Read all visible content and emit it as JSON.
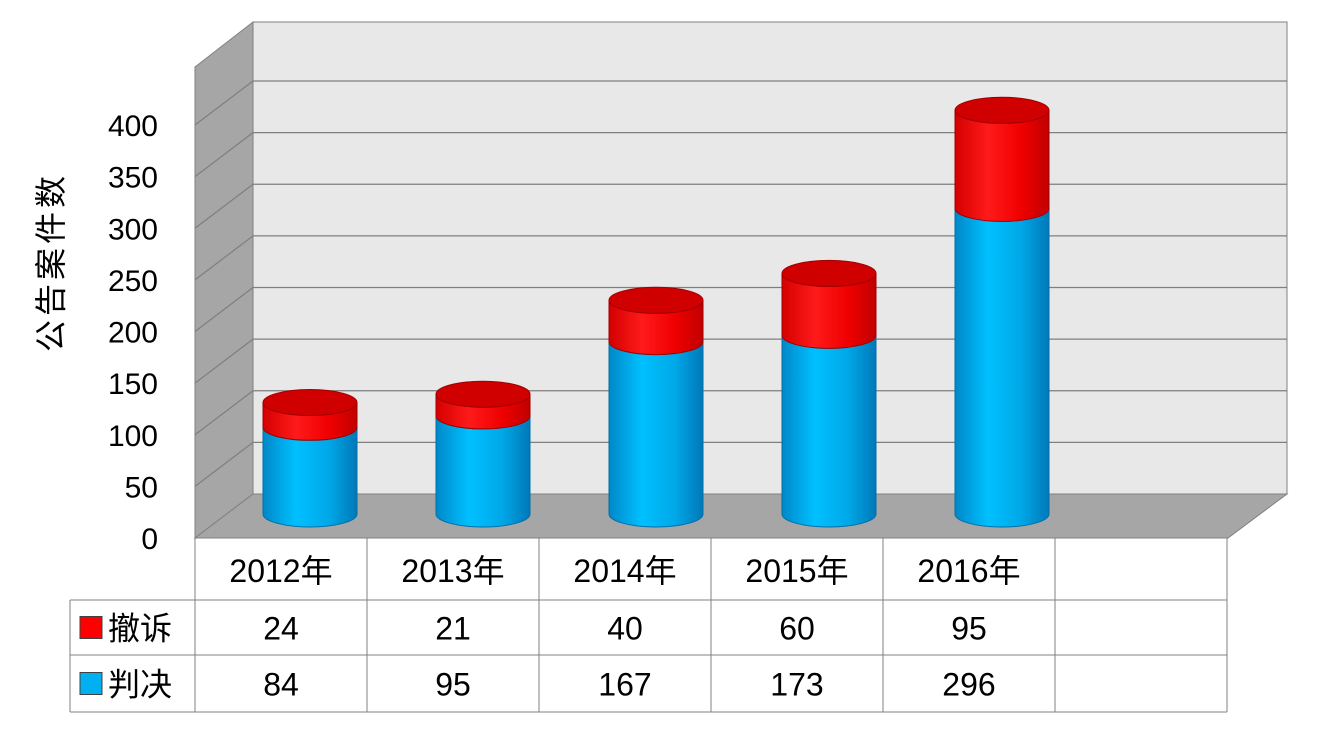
{
  "chart_data": {
    "type": "bar",
    "stacked": true,
    "style": "3d-cylinder",
    "ylabel": "公告案件数",
    "ylim": [
      0,
      400
    ],
    "yticks": [
      0,
      50,
      100,
      150,
      200,
      250,
      300,
      350,
      400
    ],
    "categories": [
      "2012年",
      "2013年",
      "2014年",
      "2015年",
      "2016年"
    ],
    "series": [
      {
        "name": "判决",
        "color": "#00b0f0",
        "top_color": "#00a0e0",
        "values": [
          84,
          95,
          167,
          173,
          296
        ]
      },
      {
        "name": "撤诉",
        "color": "#ff0000",
        "top_color": "#d00000",
        "values": [
          24,
          21,
          40,
          60,
          95
        ]
      }
    ],
    "table_rows": [
      {
        "series_index": 1
      },
      {
        "series_index": 0
      }
    ],
    "grid": true,
    "legend": "data-table",
    "wall_color": "#e8e8e8",
    "side_wall_color": "#a6a6a6",
    "floor_color": "#a6a6a6"
  }
}
